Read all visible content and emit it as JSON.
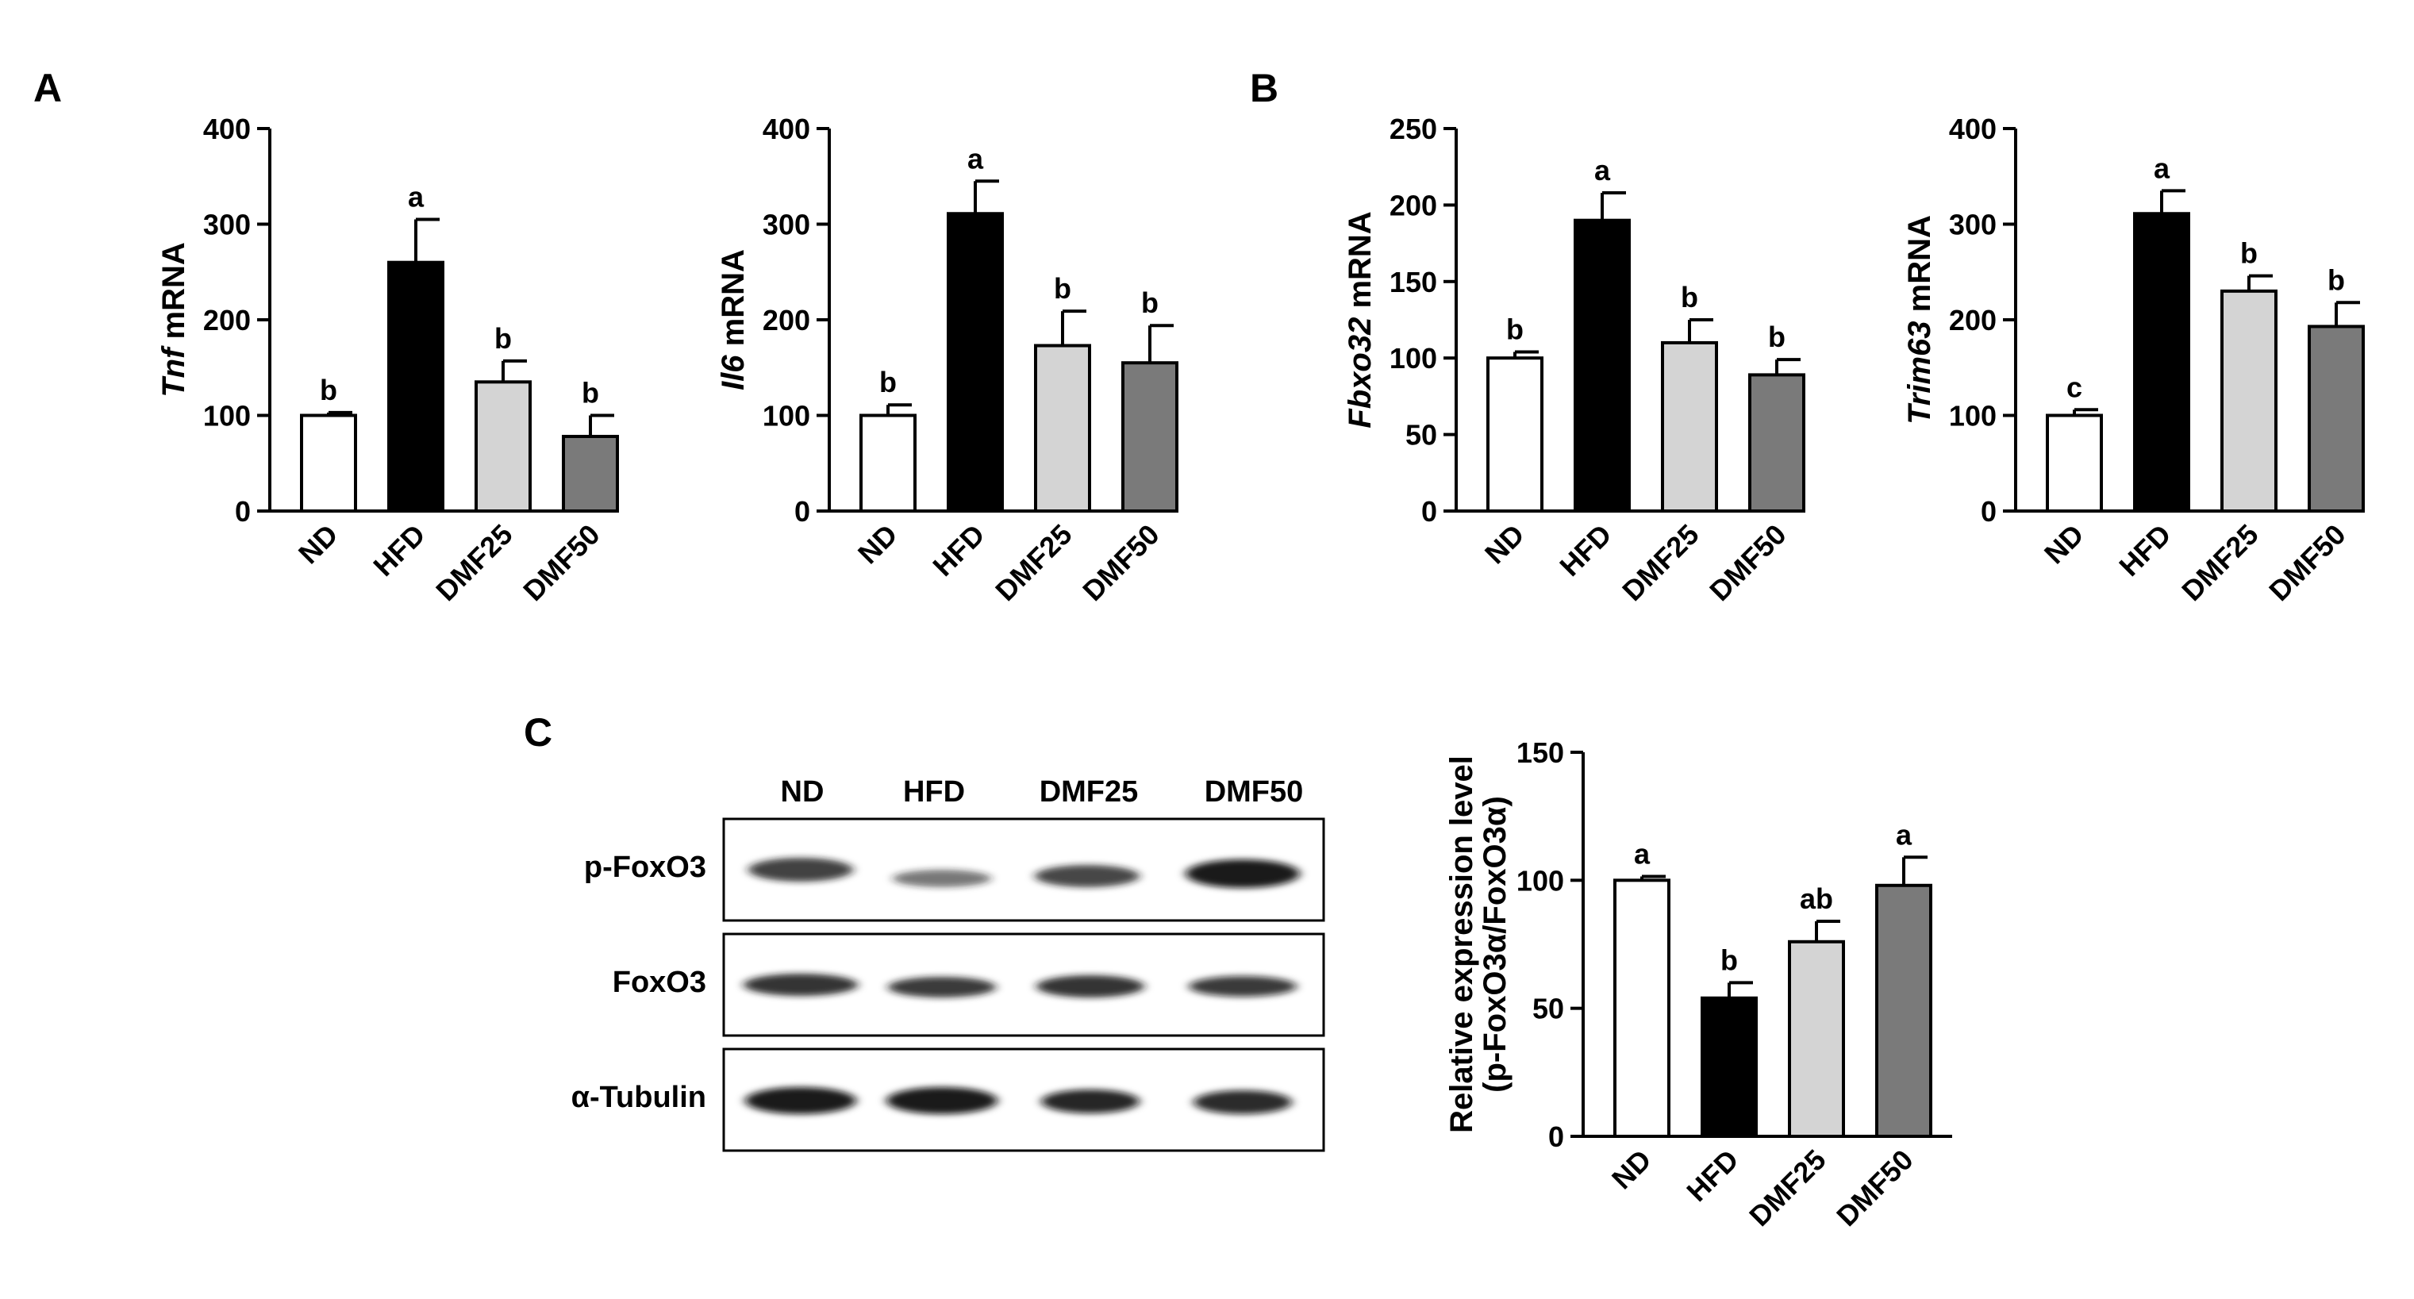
{
  "figure": {
    "panels": [
      {
        "label": "A"
      },
      {
        "label": "B"
      },
      {
        "label": "C"
      }
    ],
    "western_blot": {
      "lanes": [
        "ND",
        "HFD",
        "DMF25",
        "DMF50"
      ],
      "rows": [
        "p-FoxO3",
        "FoxO3",
        "α-Tubulin"
      ]
    }
  },
  "chart_data": [
    {
      "type": "bar",
      "panel": "A",
      "categories": [
        "ND",
        "HFD",
        "DMF25",
        "DMF50"
      ],
      "values": [
        100,
        260,
        135,
        78
      ],
      "errors": [
        3,
        45,
        22,
        22
      ],
      "significance": [
        "b",
        "a",
        "b",
        "b"
      ],
      "ylabel_italic": "Tnf",
      "ylabel_rest": " mRNA",
      "ylim": [
        0,
        400
      ],
      "yticks": [
        0,
        100,
        200,
        300,
        400
      ],
      "colors": [
        "#ffffff",
        "#000000",
        "#d4d4d4",
        "#7a7a7a"
      ]
    },
    {
      "type": "bar",
      "panel": "A",
      "categories": [
        "ND",
        "HFD",
        "DMF25",
        "DMF50"
      ],
      "values": [
        100,
        311,
        173,
        155
      ],
      "errors": [
        11,
        34,
        36,
        39
      ],
      "significance": [
        "b",
        "a",
        "b",
        "b"
      ],
      "ylabel_italic": "Il6",
      "ylabel_rest": " mRNA",
      "ylim": [
        0,
        400
      ],
      "yticks": [
        0,
        100,
        200,
        300,
        400
      ],
      "colors": [
        "#ffffff",
        "#000000",
        "#d4d4d4",
        "#7a7a7a"
      ]
    },
    {
      "type": "bar",
      "panel": "B",
      "categories": [
        "ND",
        "HFD",
        "DMF25",
        "DMF50"
      ],
      "values": [
        100,
        190,
        110,
        89
      ],
      "errors": [
        4,
        18,
        15,
        10
      ],
      "significance": [
        "b",
        "a",
        "b",
        "b"
      ],
      "ylabel_italic": "Fbxo32",
      "ylabel_rest": " mRNA",
      "ylim": [
        0,
        250
      ],
      "yticks": [
        0,
        50,
        100,
        150,
        200,
        250
      ],
      "colors": [
        "#ffffff",
        "#000000",
        "#d4d4d4",
        "#7a7a7a"
      ]
    },
    {
      "type": "bar",
      "panel": "B",
      "categories": [
        "ND",
        "HFD",
        "DMF25",
        "DMF50"
      ],
      "values": [
        100,
        311,
        230,
        193
      ],
      "errors": [
        6,
        24,
        16,
        25
      ],
      "significance": [
        "c",
        "a",
        "b",
        "b"
      ],
      "ylabel_italic": "Trim63",
      "ylabel_rest": " mRNA",
      "ylim": [
        0,
        400
      ],
      "yticks": [
        0,
        100,
        200,
        300,
        400
      ],
      "colors": [
        "#ffffff",
        "#000000",
        "#d4d4d4",
        "#7a7a7a"
      ]
    },
    {
      "type": "bar",
      "panel": "C",
      "categories": [
        "ND",
        "HFD",
        "DMF25",
        "DMF50"
      ],
      "values": [
        100,
        54,
        76,
        98
      ],
      "errors": [
        1.5,
        6,
        8,
        11
      ],
      "significance": [
        "a",
        "b",
        "ab",
        "a"
      ],
      "ylabel_line1": "Relative expression level",
      "ylabel_line2": "(p-FoxO3α/FoxO3α)",
      "ylim": [
        0,
        150
      ],
      "yticks": [
        0,
        50,
        100,
        150
      ],
      "colors": [
        "#ffffff",
        "#000000",
        "#d4d4d4",
        "#7a7a7a"
      ]
    }
  ]
}
